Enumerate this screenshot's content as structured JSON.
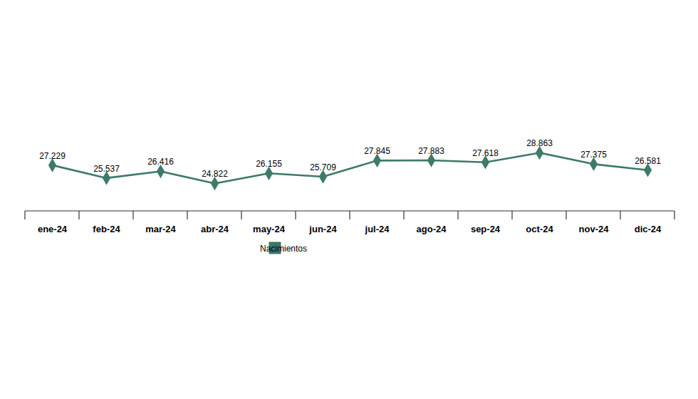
{
  "chart_data": {
    "type": "line",
    "categories": [
      "ene-24",
      "feb-24",
      "mar-24",
      "abr-24",
      "may-24",
      "jun-24",
      "jul-24",
      "ago-24",
      "sep-24",
      "oct-24",
      "nov-24",
      "dic-24"
    ],
    "series": [
      {
        "name": "Nacimientos",
        "color": "#3d7a6a",
        "marker": "diamond",
        "values": [
          27229,
          25537,
          26416,
          24822,
          26155,
          25709,
          27845,
          27883,
          27618,
          28863,
          27375,
          26581
        ],
        "value_labels": [
          "27.229",
          "25.537",
          "26.416",
          "24.822",
          "26.155",
          "25.709",
          "27.845",
          "27.883",
          "27.618",
          "28.863",
          "27.375",
          "26.581"
        ]
      }
    ],
    "data_labels": true,
    "legend": "bottom",
    "tick_labels": "x",
    "grid": false
  }
}
